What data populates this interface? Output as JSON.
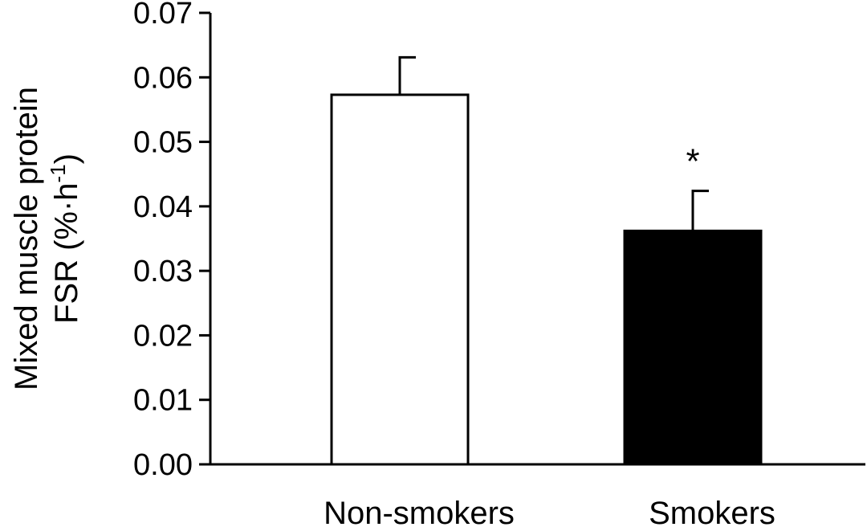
{
  "chart_data": {
    "type": "bar",
    "title": "",
    "xlabel": "",
    "ylabel_line1": "Mixed muscle protein",
    "ylabel_line2_prefix": "FSR (%·h",
    "ylabel_line2_sup": "-1",
    "ylabel_line2_suffix": ")",
    "ylim": [
      0,
      0.07
    ],
    "yticks": [
      "0.00",
      "0.01",
      "0.02",
      "0.03",
      "0.04",
      "0.05",
      "0.06",
      "0.07"
    ],
    "categories": [
      "Non-smokers",
      "Smokers"
    ],
    "values": [
      0.0573,
      0.0362
    ],
    "errors": [
      0.0058,
      0.0062
    ],
    "bar_fills": [
      "#ffffff",
      "#000000"
    ],
    "annotations": [
      "",
      "*"
    ],
    "grid": false,
    "legend": "none"
  }
}
